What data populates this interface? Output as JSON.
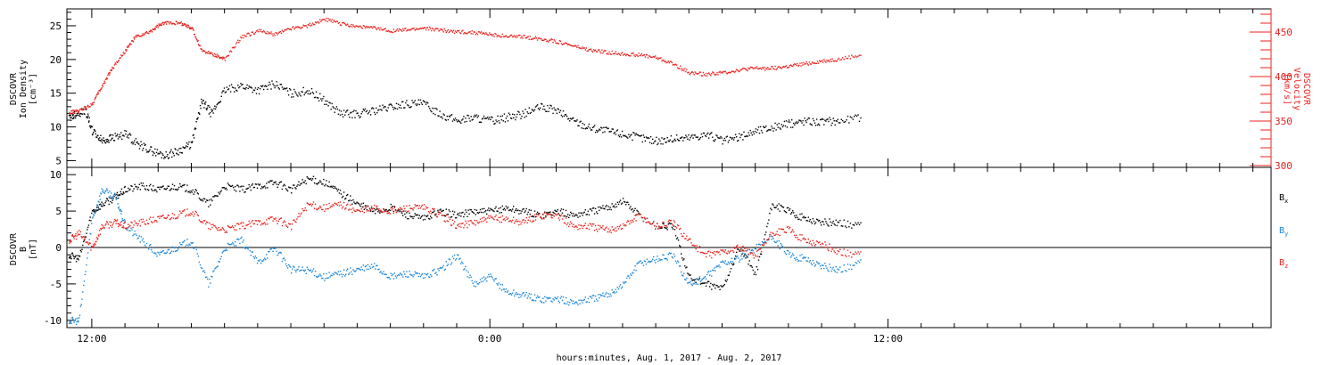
{
  "figure": {
    "xlabel": "hours:minutes, Aug.  1, 2017 - Aug.  2, 2017",
    "x_ticks": [
      {
        "t": 12.0,
        "label": "12:00"
      },
      {
        "t": 24.0,
        "label": "0:00"
      },
      {
        "t": 36.0,
        "label": "12:00"
      }
    ],
    "colors": {
      "black": "#000000",
      "red": "#e8231f",
      "blue": "#1a86d6"
    }
  },
  "chart_data": [
    {
      "type": "scatter",
      "panel": "top",
      "x_unit": "hours since 2017-08-01 00:00 UT",
      "xlim": [
        11.25,
        47.55
      ],
      "left_axis": {
        "label_lines": [
          "DSCOVR",
          "Ion Density",
          "[cm⁻³]"
        ],
        "ylim": [
          4,
          27.5
        ],
        "ticks": [
          5,
          10,
          15,
          20,
          25
        ]
      },
      "right_axis": {
        "label_lines": [
          "DSCOVR",
          "Velocity",
          "[km/s]"
        ],
        "ylim": [
          298,
          476
        ],
        "ticks": [
          300,
          350,
          400,
          450
        ]
      },
      "series": [
        {
          "name": "Ion Density",
          "axis": "left",
          "color": "#000000",
          "x": [
            11.3,
            11.5,
            11.8,
            12.0,
            12.3,
            12.6,
            13.0,
            13.4,
            13.8,
            14.2,
            14.6,
            15.0,
            15.3,
            15.6,
            16.0,
            16.5,
            17.0,
            17.5,
            18.0,
            18.5,
            19.0,
            19.5,
            20.0,
            20.5,
            21.0,
            21.5,
            22.0,
            22.5,
            23.0,
            23.5,
            24.0,
            24.5,
            25.0,
            25.5,
            26.0,
            26.5,
            27.0,
            27.5,
            28.0,
            28.5,
            29.0,
            29.5,
            30.0,
            30.5,
            31.0,
            31.5,
            32.0,
            32.5,
            33.0,
            33.5,
            34.0,
            34.5,
            35.2
          ],
          "y": [
            11.5,
            12.0,
            12.5,
            9.5,
            8.0,
            8.5,
            9.0,
            7.5,
            6.5,
            5.8,
            6.5,
            7.5,
            14.0,
            12.0,
            15.5,
            16.2,
            15.5,
            16.5,
            15.0,
            15.5,
            14.0,
            12.0,
            12.0,
            12.5,
            13.0,
            13.5,
            13.5,
            12.0,
            11.0,
            11.5,
            11.0,
            11.5,
            12.0,
            13.0,
            12.5,
            11.0,
            10.0,
            9.5,
            9.0,
            8.5,
            8.0,
            8.3,
            8.5,
            9.0,
            8.0,
            8.5,
            9.5,
            10.0,
            10.5,
            11.0,
            10.8,
            11.0,
            11.5
          ]
        },
        {
          "name": "Velocity",
          "axis": "right",
          "color": "#e8231f",
          "x": [
            11.3,
            11.6,
            12.0,
            12.3,
            12.6,
            13.0,
            13.3,
            13.7,
            14.0,
            14.3,
            14.7,
            15.0,
            15.3,
            15.7,
            16.0,
            16.5,
            17.0,
            17.5,
            18.0,
            18.5,
            19.0,
            19.5,
            20.0,
            20.5,
            21.0,
            21.5,
            22.0,
            22.5,
            23.0,
            23.5,
            24.0,
            24.5,
            25.0,
            25.5,
            26.0,
            26.5,
            27.0,
            27.5,
            28.0,
            28.5,
            29.0,
            29.5,
            30.0,
            30.5,
            31.0,
            31.5,
            32.0,
            32.5,
            33.0,
            33.5,
            34.0,
            34.5,
            35.2
          ],
          "y": [
            360,
            362,
            370,
            390,
            410,
            430,
            445,
            450,
            458,
            462,
            460,
            455,
            430,
            425,
            420,
            445,
            452,
            448,
            455,
            458,
            465,
            460,
            457,
            455,
            452,
            453,
            455,
            453,
            451,
            450,
            448,
            446,
            445,
            443,
            440,
            435,
            430,
            428,
            426,
            425,
            422,
            415,
            405,
            403,
            405,
            408,
            410,
            410,
            412,
            415,
            418,
            420,
            425
          ]
        }
      ]
    },
    {
      "type": "scatter",
      "panel": "bottom",
      "x_unit": "hours since 2017-08-01 00:00 UT",
      "xlim": [
        11.25,
        47.55
      ],
      "left_axis": {
        "label_lines": [
          "DSCOVR",
          "B",
          "[nT]"
        ],
        "ylim": [
          -11,
          11
        ],
        "ticks": [
          -10,
          -5,
          0,
          5,
          10
        ]
      },
      "legend": [
        "Bx",
        "By",
        "Bz"
      ],
      "series": [
        {
          "name": "Bx",
          "color": "#000000",
          "x": [
            11.3,
            11.6,
            12.0,
            12.3,
            12.7,
            13.0,
            13.5,
            14.0,
            14.5,
            15.0,
            15.5,
            16.0,
            16.5,
            17.0,
            17.5,
            18.0,
            18.5,
            19.0,
            19.5,
            20.0,
            20.5,
            21.0,
            21.5,
            22.0,
            22.5,
            23.0,
            23.5,
            24.0,
            24.5,
            25.0,
            25.5,
            26.0,
            26.5,
            27.0,
            27.5,
            28.0,
            28.5,
            29.0,
            29.5,
            30.0,
            30.5,
            31.0,
            31.5,
            32.0,
            32.5,
            33.0,
            33.5,
            34.0,
            34.5,
            35.2
          ],
          "y": [
            -1.0,
            -1.5,
            5.0,
            6.0,
            7.0,
            8.0,
            8.5,
            8.0,
            8.5,
            8.0,
            6.0,
            8.5,
            8.0,
            8.5,
            9.0,
            8.0,
            9.5,
            9.0,
            7.5,
            6.0,
            5.0,
            5.5,
            4.5,
            4.0,
            5.0,
            4.5,
            5.0,
            5.0,
            5.5,
            5.0,
            4.5,
            5.0,
            4.5,
            5.0,
            5.5,
            6.5,
            4.5,
            3.0,
            3.0,
            -4.0,
            -5.0,
            -5.5,
            0.0,
            -3.5,
            6.0,
            5.0,
            4.0,
            3.5,
            3.5,
            3.0
          ]
        },
        {
          "name": "By",
          "color": "#1a86d6",
          "x": [
            11.3,
            11.6,
            12.0,
            12.3,
            12.7,
            13.0,
            13.5,
            14.0,
            14.5,
            15.0,
            15.5,
            16.0,
            16.5,
            17.0,
            17.5,
            18.0,
            18.5,
            19.0,
            19.5,
            20.0,
            20.5,
            21.0,
            21.5,
            22.0,
            22.5,
            23.0,
            23.5,
            24.0,
            24.5,
            25.0,
            25.5,
            26.0,
            26.5,
            27.0,
            27.5,
            28.0,
            28.5,
            29.0,
            29.5,
            30.0,
            30.5,
            31.0,
            31.5,
            32.0,
            32.5,
            33.0,
            33.5,
            34.0,
            34.5,
            35.2
          ],
          "y": [
            -10.0,
            -10.0,
            4.0,
            8.0,
            7.0,
            3.0,
            1.0,
            -1.0,
            0.0,
            1.0,
            -5.0,
            0.0,
            1.0,
            -2.0,
            0.0,
            -3.0,
            -3.0,
            -4.0,
            -3.5,
            -3.0,
            -2.5,
            -4.0,
            -3.5,
            -4.0,
            -3.0,
            -1.0,
            -5.0,
            -4.0,
            -6.0,
            -6.5,
            -7.0,
            -7.0,
            -7.5,
            -7.0,
            -6.5,
            -5.0,
            -2.0,
            -1.5,
            -1.0,
            -5.0,
            -4.0,
            -2.0,
            -1.5,
            0.0,
            1.5,
            -1.0,
            -1.5,
            -2.5,
            -3.0,
            -2.0
          ]
        },
        {
          "name": "Bz",
          "color": "#e8231f",
          "x": [
            11.3,
            11.6,
            12.0,
            12.3,
            12.7,
            13.0,
            13.5,
            14.0,
            14.5,
            15.0,
            15.5,
            16.0,
            16.5,
            17.0,
            17.5,
            18.0,
            18.5,
            19.0,
            19.5,
            20.0,
            20.5,
            21.0,
            21.5,
            22.0,
            22.5,
            23.0,
            23.5,
            24.0,
            24.5,
            25.0,
            25.5,
            26.0,
            26.5,
            27.0,
            27.5,
            28.0,
            28.5,
            29.0,
            29.5,
            30.0,
            30.5,
            31.0,
            31.5,
            32.0,
            32.5,
            33.0,
            33.5,
            34.0,
            34.5,
            35.2
          ],
          "y": [
            1.0,
            2.0,
            0.0,
            3.0,
            3.5,
            3.0,
            3.5,
            4.0,
            4.5,
            5.0,
            3.0,
            2.5,
            3.0,
            3.5,
            4.0,
            3.0,
            6.0,
            5.5,
            6.0,
            5.0,
            5.5,
            5.0,
            5.5,
            5.5,
            4.5,
            3.0,
            3.5,
            4.0,
            4.0,
            3.5,
            4.5,
            4.5,
            3.0,
            3.0,
            2.5,
            3.0,
            4.5,
            3.0,
            3.5,
            1.0,
            -1.0,
            -0.5,
            0.0,
            -1.0,
            2.0,
            2.5,
            1.0,
            0.5,
            -0.5,
            -1.0
          ]
        }
      ]
    }
  ]
}
